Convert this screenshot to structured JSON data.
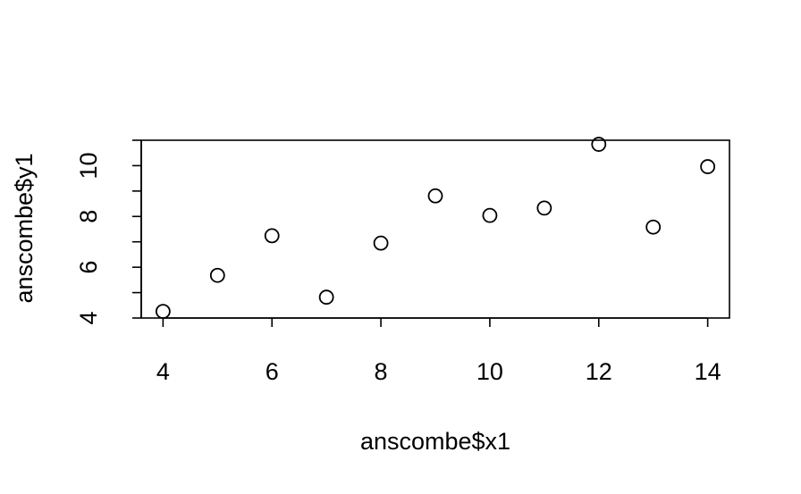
{
  "chart_data": {
    "type": "scatter",
    "title": "",
    "xlabel": "anscombe$x1",
    "ylabel": "anscombe$y1",
    "xlim": [
      3.6,
      14.4
    ],
    "ylim": [
      4.0,
      11.0
    ],
    "x_ticks": [
      4,
      6,
      8,
      10,
      12,
      14
    ],
    "y_ticks": [
      4,
      6,
      8,
      10
    ],
    "y_minor_ticks": [
      5,
      7,
      9,
      11
    ],
    "grid": false,
    "marker": "open-circle",
    "marker_color": "#000000",
    "points": [
      {
        "x": 4,
        "y": 4.26
      },
      {
        "x": 5,
        "y": 5.68
      },
      {
        "x": 6,
        "y": 7.24
      },
      {
        "x": 7,
        "y": 4.82
      },
      {
        "x": 8,
        "y": 6.95
      },
      {
        "x": 9,
        "y": 8.81
      },
      {
        "x": 10,
        "y": 8.04
      },
      {
        "x": 11,
        "y": 8.33
      },
      {
        "x": 12,
        "y": 10.84
      },
      {
        "x": 13,
        "y": 7.58
      },
      {
        "x": 14,
        "y": 9.96
      }
    ]
  }
}
